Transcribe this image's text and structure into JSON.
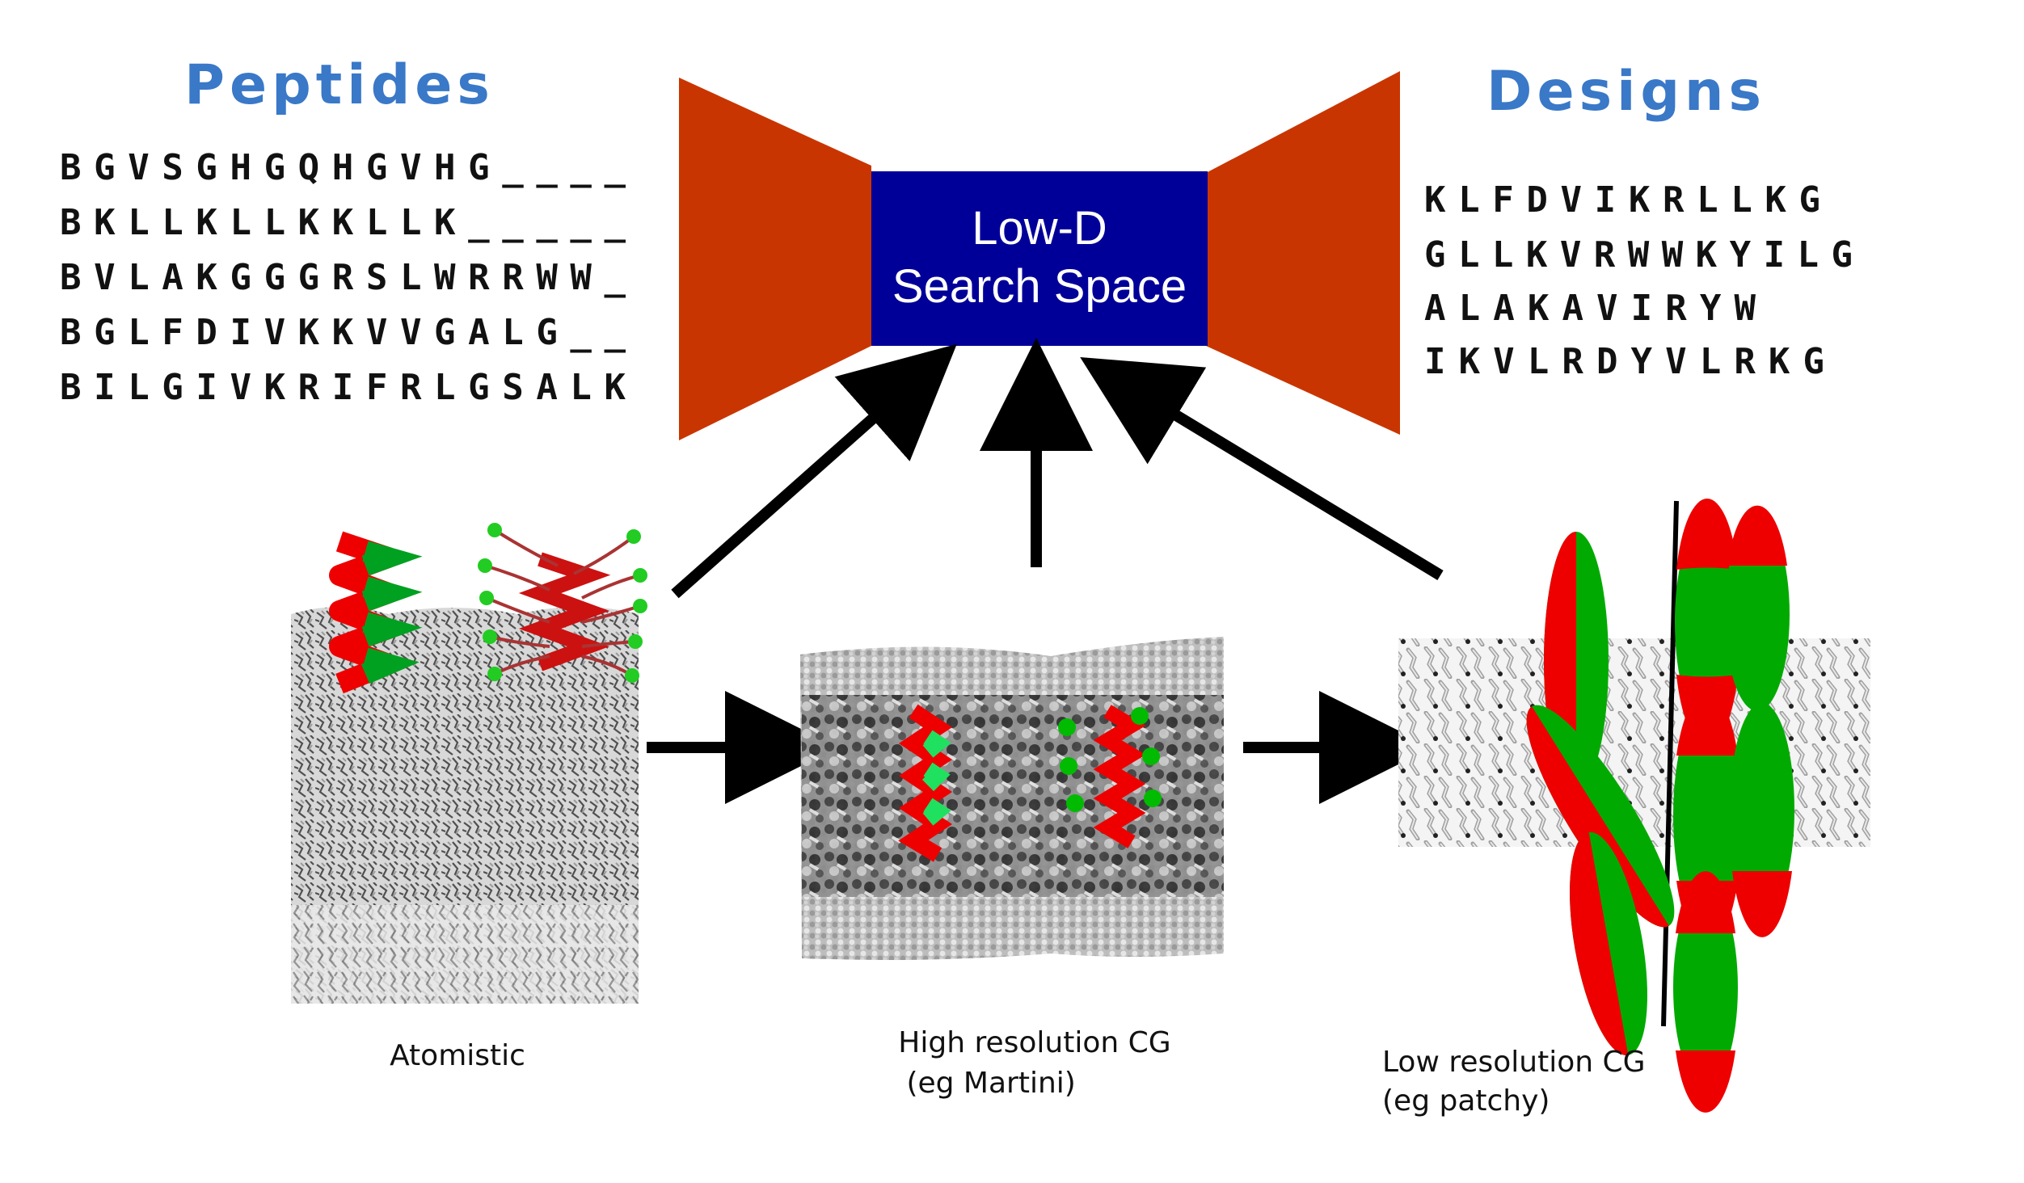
{
  "peptides": {
    "title": "Peptides",
    "sequences": [
      "BGVSGHGQHGVHG____",
      "BKLLKLLKKLLK_____",
      "BVLAKGGGRSLWRRWW_",
      "BGLFDIVKKVVGALG__",
      "BILGIVKRIFRLGSALK"
    ]
  },
  "designs": {
    "title": "Designs",
    "sequences": [
      "KLFDVIKRLLKG",
      "GLLKVRWWKYILG",
      "ALAKAVIRYW",
      "IKVLRDYVLRKG"
    ]
  },
  "search_space": {
    "line1": "Low-D",
    "line2": "Search Space"
  },
  "panels": {
    "atomistic": {
      "label": "Atomistic"
    },
    "high_res": {
      "label_line1": "High resolution CG",
      "label_line2": " (eg Martini)"
    },
    "low_res": {
      "label_line1": "Low resolution CG",
      "label_line2": "(eg patchy)"
    }
  },
  "colors": {
    "header_blue": "#3a78c8",
    "funnel_orange": "#c93500",
    "box_navy": "#000099",
    "helix_red": "#ee0000",
    "helix_green": "#00a020"
  }
}
